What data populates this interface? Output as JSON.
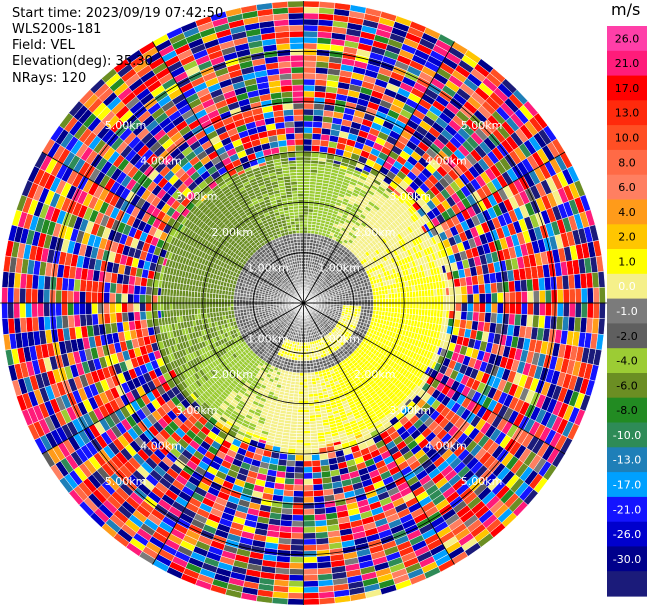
{
  "header": {
    "start_time": "Start time: 2023/09/19 07:42:50",
    "site": "WLS200s-181",
    "field": "Field: VEL",
    "elevation": "Elevation(deg): 35.30",
    "nrays": "NRays: 120"
  },
  "colorbar": {
    "unit": "m/s",
    "ticks": [
      "26.0",
      "21.0",
      "17.0",
      "13.0",
      "10.0",
      "8.0",
      "6.0",
      "4.0",
      "2.0",
      "1.0",
      "0.0",
      "-1.0",
      "-2.0",
      "-4.0",
      "-6.0",
      "-8.0",
      "-10.0",
      "-13.0",
      "-17.0",
      "-21.0",
      "-26.0",
      "-30.0"
    ],
    "colors": [
      "#ff3fa8",
      "#ff1c7a",
      "#ff0000",
      "#ff2a0c",
      "#ff4f24",
      "#ff6a46",
      "#ff7f61",
      "#ff9b1a",
      "#ffc600",
      "#ffff00",
      "#f5f08a",
      "#7b7b7b",
      "#5f5f5f",
      "#9ccc34",
      "#6b8e23",
      "#228b22",
      "#2e8b57",
      "#1e7fb8",
      "#00a0ff",
      "#1414ff",
      "#0000cd",
      "#00008b",
      "#1b1b7a"
    ]
  },
  "chart_data": {
    "type": "ppi",
    "field": "VEL",
    "units": "m/s",
    "nrays": 120,
    "max_range_km": 6.0,
    "range_rings": [
      {
        "label": "1.00km",
        "km": 1.0
      },
      {
        "label": "2.00km",
        "km": 2.0
      },
      {
        "label": "3.00km",
        "km": 3.0
      },
      {
        "label": "4.00km",
        "km": 4.0
      },
      {
        "label": "5.00km",
        "km": 5.0
      }
    ],
    "spokes_deg": [
      0,
      30,
      60,
      90,
      120,
      150,
      180,
      210,
      240,
      270,
      300,
      330
    ],
    "velocity_bounds": [
      -30,
      -26,
      -21,
      -17,
      -13,
      -10,
      -8,
      -6,
      -4,
      -2,
      -1,
      0,
      1,
      2,
      4,
      6,
      8,
      10,
      13,
      17,
      21,
      26,
      30
    ],
    "noise_start_km": 3.0
  }
}
